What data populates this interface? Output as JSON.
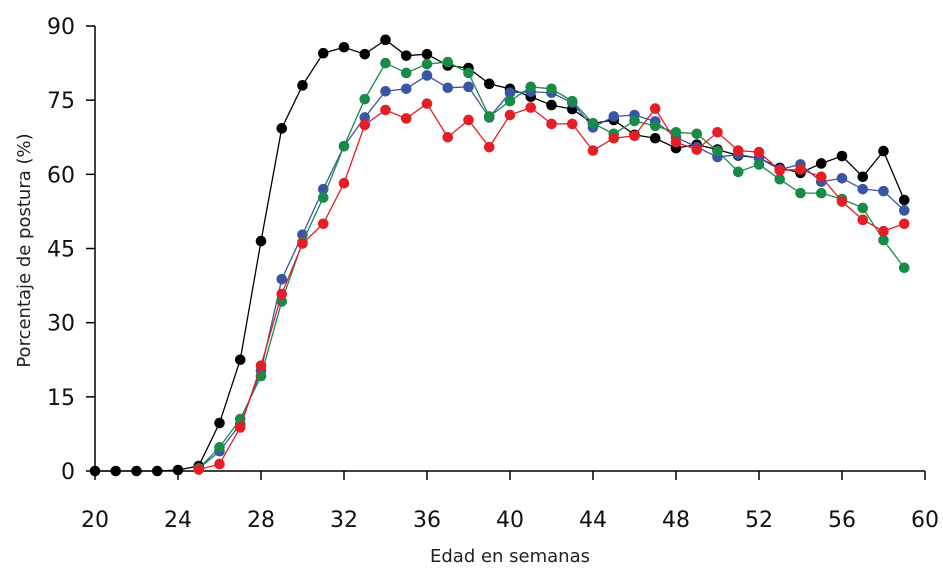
{
  "chart_data": {
    "type": "line",
    "title": "",
    "xlabel": "Edad en semanas",
    "ylabel": "Porcentaje de postura (%)",
    "xlim": [
      20,
      60
    ],
    "ylim": [
      0,
      90
    ],
    "xticks": [
      20,
      24,
      28,
      32,
      36,
      40,
      44,
      48,
      52,
      56,
      60
    ],
    "yticks": [
      0,
      15,
      30,
      45,
      60,
      75,
      90
    ],
    "grid": false,
    "series": [
      {
        "color": "#000000",
        "x": [
          20,
          21,
          22,
          23,
          24,
          25,
          26,
          27,
          28,
          29,
          30,
          31,
          32,
          33,
          34,
          35,
          36,
          37,
          38,
          39,
          40,
          41,
          42,
          43,
          44,
          45,
          46,
          47,
          48,
          49,
          50,
          51,
          52,
          53,
          54,
          55,
          56,
          57,
          58,
          59
        ],
        "values": [
          0,
          0,
          0,
          0,
          0.2,
          1,
          9.7,
          22.5,
          46.5,
          69.3,
          78,
          84.5,
          85.7,
          84.3,
          87.2,
          84,
          84.3,
          82,
          81.5,
          78.3,
          77.3,
          75.7,
          74,
          73.2,
          70.3,
          71,
          68,
          67.3,
          65.3,
          66,
          65,
          63.8,
          63.3,
          61.3,
          60.3,
          62.2,
          63.7,
          59.5,
          64.7,
          54.8
        ]
      },
      {
        "color": "#3a55a4",
        "x": [
          25,
          26,
          27,
          28,
          29,
          30,
          31,
          32,
          33,
          34,
          35,
          36,
          37,
          38,
          39,
          40,
          41,
          42,
          43,
          44,
          45,
          46,
          47,
          48,
          49,
          50,
          51,
          52,
          53,
          54,
          55,
          56,
          57,
          58,
          59
        ],
        "values": [
          0.5,
          4,
          9.5,
          20.3,
          38.8,
          47.8,
          57,
          65.7,
          71.5,
          76.8,
          77.3,
          80,
          77.5,
          77.7,
          71.5,
          76.5,
          76.7,
          76.5,
          74.5,
          69.5,
          71.7,
          72,
          70.7,
          67.5,
          65.5,
          63.5,
          64,
          63.3,
          61,
          62,
          58.5,
          59.2,
          57,
          56.6,
          52.7
        ]
      },
      {
        "color": "#1a8a48",
        "x": [
          25,
          26,
          27,
          28,
          29,
          30,
          31,
          32,
          33,
          34,
          35,
          36,
          37,
          38,
          39,
          40,
          41,
          42,
          43,
          44,
          45,
          46,
          47,
          48,
          49,
          50,
          51,
          52,
          53,
          54,
          55,
          56,
          57,
          58,
          59
        ],
        "values": [
          0.5,
          4.8,
          10.5,
          19.2,
          34.3,
          46.3,
          55.3,
          65.7,
          75.2,
          82.5,
          80.5,
          82.3,
          82.7,
          80.5,
          71.7,
          74.8,
          77.7,
          77.3,
          74.8,
          70.3,
          68.2,
          70.8,
          69.8,
          68.5,
          68.2,
          64.7,
          60.5,
          62,
          59,
          56.2,
          56.2,
          55,
          53.2,
          46.7,
          41.1
        ]
      },
      {
        "color": "#e31e26",
        "x": [
          25,
          26,
          27,
          28,
          29,
          30,
          31,
          32,
          33,
          34,
          35,
          36,
          37,
          38,
          39,
          40,
          41,
          42,
          43,
          44,
          45,
          46,
          47,
          48,
          49,
          50,
          51,
          52,
          53,
          54,
          55,
          56,
          57,
          58,
          59
        ],
        "values": [
          0.3,
          1.4,
          8.8,
          21.3,
          35.8,
          46,
          50,
          58.2,
          70,
          73,
          71.3,
          74.3,
          67.5,
          71,
          65.5,
          72,
          73.5,
          70.2,
          70.2,
          64.8,
          67.3,
          67.8,
          73.3,
          66.5,
          65,
          68.5,
          64.8,
          64.5,
          60.8,
          61,
          59.5,
          54.5,
          50.8,
          48.5,
          50
        ]
      }
    ]
  }
}
